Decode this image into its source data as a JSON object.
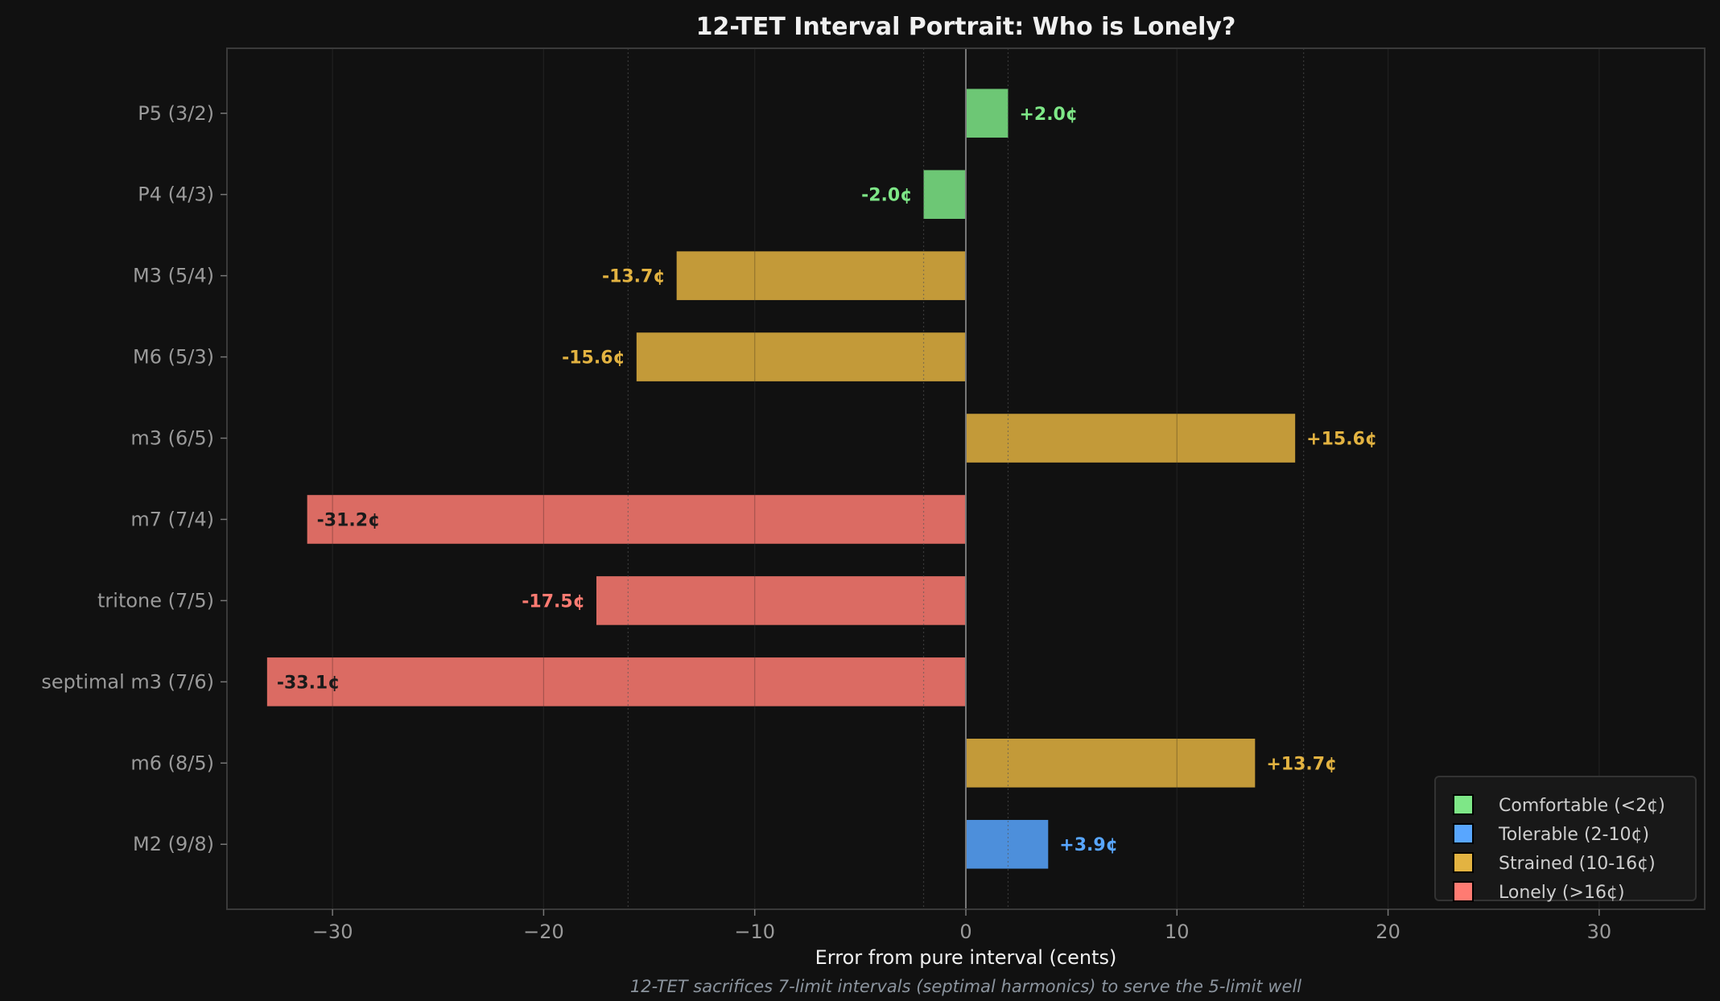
{
  "chart_data": {
    "type": "bar",
    "orientation": "horizontal",
    "title": "12-TET Interval Portrait: Who is Lonely?",
    "xlabel": "Error from pure interval (cents)",
    "caption": "12-TET sacrifices 7-limit intervals (septimal harmonics) to serve the 5-limit well",
    "xlim": [
      -35,
      35
    ],
    "xticks": [
      -30,
      -20,
      -10,
      0,
      10,
      20,
      30
    ],
    "xtick_labels": [
      "−30",
      "−20",
      "−10",
      "0",
      "10",
      "20",
      "30"
    ],
    "reference_lines": [
      -16,
      -2,
      2,
      16
    ],
    "grid": true,
    "legend_position": "lower-right",
    "categories": [
      "P5 (3/2)",
      "P4 (4/3)",
      "M3 (5/4)",
      "M6 (5/3)",
      "m3 (6/5)",
      "m7 (7/4)",
      "tritone (7/5)",
      "septimal m3 (7/6)",
      "m6 (8/5)",
      "M2 (9/8)"
    ],
    "values": [
      2.0,
      -2.0,
      -13.7,
      -15.6,
      15.6,
      -31.2,
      -17.5,
      -33.1,
      13.7,
      3.9
    ],
    "value_labels": [
      "+2.0¢",
      "-2.0¢",
      "-13.7¢",
      "-15.6¢",
      "+15.6¢",
      "-31.2¢",
      "-17.5¢",
      "-33.1¢",
      "+13.7¢",
      "+3.9¢"
    ],
    "bar_classes": [
      "comfortable",
      "comfortable",
      "strained",
      "strained",
      "strained",
      "lonely",
      "lonely",
      "lonely",
      "strained",
      "tolerable"
    ],
    "legend": [
      {
        "key": "comfortable",
        "label": "Comfortable (<2¢)",
        "color": "#7ee787"
      },
      {
        "key": "tolerable",
        "label": "Tolerable (2-10¢)",
        "color": "#58a6ff"
      },
      {
        "key": "strained",
        "label": "Strained (10-16¢)",
        "color": "#e3b341"
      },
      {
        "key": "lonely",
        "label": "Lonely (>16¢)",
        "color": "#ff7b72"
      }
    ]
  }
}
